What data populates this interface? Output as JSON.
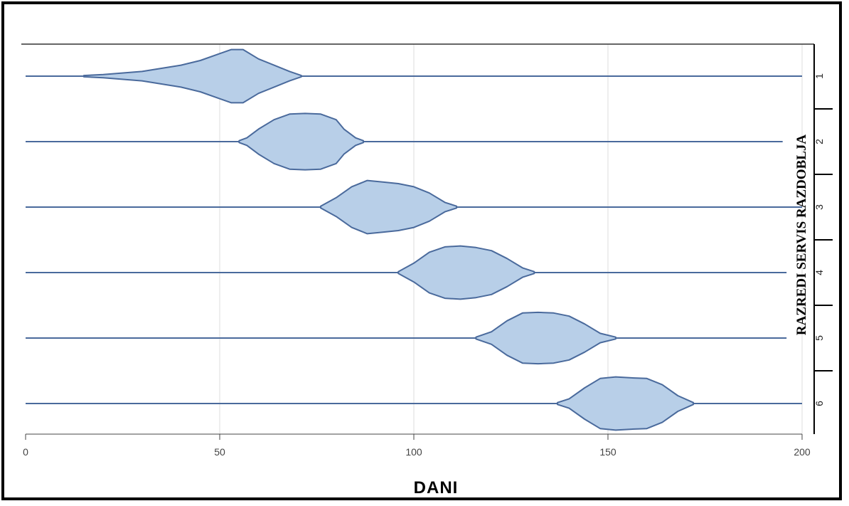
{
  "chart_data": {
    "type": "violin",
    "orientation": "horizontal",
    "title": "",
    "xlabel": "DANI",
    "ylabel": "RAZREDI SERVIS RAZDOBLJA",
    "xlim": [
      0,
      200
    ],
    "xticks": [
      0,
      50,
      100,
      150,
      200
    ],
    "grid": "vertical",
    "fill_color": "#b8cfe8",
    "line_color": "#4a6a9c",
    "categories": [
      "1",
      "2",
      "3",
      "4",
      "5",
      "6"
    ],
    "series": [
      {
        "category": "1",
        "range": [
          0,
          200
        ],
        "density": [
          [
            15,
            0.02
          ],
          [
            20,
            0.05
          ],
          [
            30,
            0.15
          ],
          [
            40,
            0.35
          ],
          [
            45,
            0.5
          ],
          [
            50,
            0.72
          ],
          [
            53,
            0.85
          ],
          [
            56,
            0.85
          ],
          [
            60,
            0.55
          ],
          [
            64,
            0.35
          ],
          [
            68,
            0.15
          ],
          [
            71,
            0.02
          ]
        ]
      },
      {
        "category": "2",
        "range": [
          0,
          195
        ],
        "density": [
          [
            55,
            0.03
          ],
          [
            57,
            0.12
          ],
          [
            60,
            0.4
          ],
          [
            64,
            0.7
          ],
          [
            68,
            0.88
          ],
          [
            72,
            0.9
          ],
          [
            76,
            0.88
          ],
          [
            80,
            0.7
          ],
          [
            82,
            0.4
          ],
          [
            85,
            0.12
          ],
          [
            87,
            0.03
          ]
        ]
      },
      {
        "category": "3",
        "range": [
          0,
          200
        ],
        "density": [
          [
            76,
            0.03
          ],
          [
            80,
            0.3
          ],
          [
            84,
            0.65
          ],
          [
            88,
            0.85
          ],
          [
            92,
            0.8
          ],
          [
            96,
            0.75
          ],
          [
            100,
            0.65
          ],
          [
            104,
            0.45
          ],
          [
            108,
            0.15
          ],
          [
            111,
            0.03
          ]
        ]
      },
      {
        "category": "4",
        "range": [
          0,
          196
        ],
        "density": [
          [
            96,
            0.03
          ],
          [
            100,
            0.3
          ],
          [
            104,
            0.65
          ],
          [
            108,
            0.82
          ],
          [
            112,
            0.85
          ],
          [
            116,
            0.8
          ],
          [
            120,
            0.7
          ],
          [
            124,
            0.45
          ],
          [
            128,
            0.15
          ],
          [
            131,
            0.03
          ]
        ]
      },
      {
        "category": "5",
        "range": [
          0,
          196
        ],
        "density": [
          [
            116,
            0.03
          ],
          [
            120,
            0.2
          ],
          [
            124,
            0.55
          ],
          [
            128,
            0.8
          ],
          [
            132,
            0.82
          ],
          [
            136,
            0.8
          ],
          [
            140,
            0.7
          ],
          [
            144,
            0.45
          ],
          [
            148,
            0.15
          ],
          [
            152,
            0.03
          ]
        ]
      },
      {
        "category": "6",
        "range": [
          0,
          200
        ],
        "density": [
          [
            137,
            0.03
          ],
          [
            140,
            0.15
          ],
          [
            144,
            0.5
          ],
          [
            148,
            0.8
          ],
          [
            152,
            0.85
          ],
          [
            156,
            0.82
          ],
          [
            160,
            0.8
          ],
          [
            164,
            0.6
          ],
          [
            168,
            0.25
          ],
          [
            172,
            0.03
          ]
        ]
      }
    ]
  }
}
